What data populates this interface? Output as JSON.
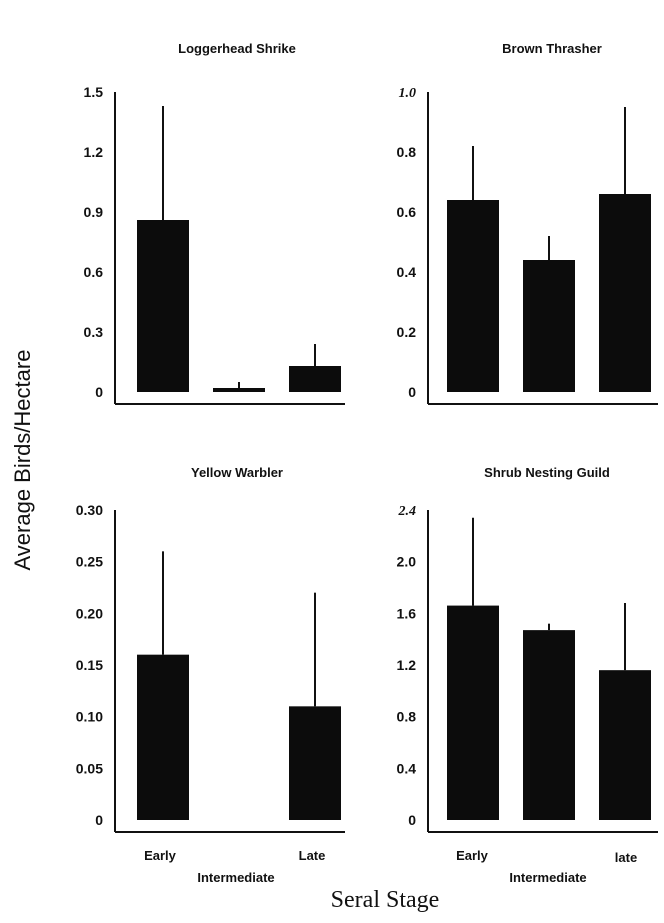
{
  "ylabel": "Average Birds/Hectare",
  "xlabel": "Seral Stage",
  "chart_data": [
    {
      "type": "bar",
      "title": "Loggerhead Shrike",
      "categories": [
        "Early",
        "Intermediate",
        "Late"
      ],
      "values": [
        0.86,
        0.02,
        0.13
      ],
      "error_upper": [
        1.43,
        0.05,
        0.24
      ],
      "ylim": [
        0,
        1.5
      ],
      "yticks": [
        "0",
        "0.3",
        "0.6",
        "0.9",
        "1.2",
        "1.5"
      ]
    },
    {
      "type": "bar",
      "title": "Brown Thrasher",
      "categories": [
        "Early",
        "Intermediate",
        "Late"
      ],
      "values": [
        0.64,
        0.44,
        0.66
      ],
      "error_upper": [
        0.82,
        0.52,
        0.95
      ],
      "ylim": [
        0,
        1.0
      ],
      "yticks": [
        "0",
        "0.2",
        "0.4",
        "0.6",
        "0.8",
        "1.0"
      ]
    },
    {
      "type": "bar",
      "title": "Yellow Warbler",
      "categories": [
        "Early",
        "Intermediate",
        "Late"
      ],
      "values": [
        0.16,
        0,
        0.11
      ],
      "error_upper": [
        0.26,
        0,
        0.22
      ],
      "ylim": [
        0,
        0.3
      ],
      "yticks": [
        "0",
        "0.05",
        "0.10",
        "0.15",
        "0.20",
        "0.25",
        "0.30"
      ]
    },
    {
      "type": "bar",
      "title": "Shrub Nesting Guild",
      "categories": [
        "Early",
        "Intermediate",
        "late"
      ],
      "values": [
        1.66,
        1.47,
        1.16
      ],
      "error_upper": [
        2.34,
        1.52,
        1.68
      ],
      "ylim": [
        0,
        2.4
      ],
      "yticks": [
        "0",
        "0.4",
        "0.8",
        "1.2",
        "1.6",
        "2.0",
        "2.4"
      ]
    }
  ],
  "colors": {
    "bar": "#0c0c0c",
    "axis": "#111111"
  }
}
